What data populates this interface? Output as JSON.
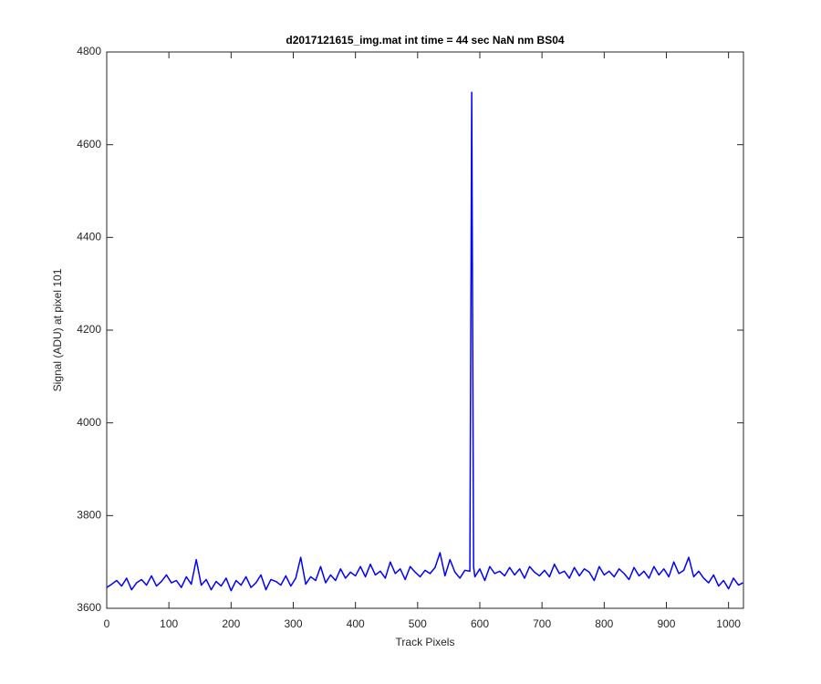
{
  "chart_data": {
    "type": "line",
    "title": "d2017121615_img.mat int time = 44 sec  NaN nm BS04",
    "x_label": "Track Pixels",
    "y_label": "Signal (ADU) at pixel 101",
    "x": [
      0,
      8,
      16,
      24,
      32,
      40,
      48,
      56,
      64,
      72,
      80,
      88,
      96,
      104,
      112,
      120,
      128,
      136,
      144,
      152,
      160,
      168,
      176,
      184,
      192,
      200,
      208,
      216,
      224,
      232,
      240,
      248,
      256,
      264,
      272,
      280,
      288,
      296,
      304,
      312,
      320,
      328,
      336,
      344,
      352,
      360,
      368,
      376,
      384,
      392,
      400,
      408,
      416,
      424,
      432,
      440,
      448,
      456,
      464,
      472,
      480,
      488,
      496,
      504,
      512,
      520,
      528,
      536,
      544,
      552,
      560,
      568,
      576,
      584,
      587,
      590,
      592,
      600,
      608,
      616,
      624,
      632,
      640,
      648,
      656,
      664,
      672,
      680,
      688,
      696,
      704,
      712,
      720,
      728,
      736,
      744,
      752,
      760,
      768,
      776,
      784,
      792,
      800,
      808,
      816,
      824,
      832,
      840,
      848,
      856,
      864,
      872,
      880,
      888,
      896,
      904,
      912,
      920,
      928,
      936,
      944,
      952,
      960,
      968,
      976,
      984,
      992,
      1000,
      1008,
      1016,
      1023
    ],
    "series": [
      {
        "name": "Signal",
        "color": "#0000ff",
        "values": [
          3645,
          3652,
          3660,
          3648,
          3665,
          3640,
          3655,
          3662,
          3650,
          3670,
          3648,
          3658,
          3672,
          3655,
          3660,
          3645,
          3668,
          3652,
          3705,
          3650,
          3662,
          3640,
          3658,
          3648,
          3665,
          3638,
          3660,
          3650,
          3668,
          3645,
          3655,
          3672,
          3640,
          3662,
          3658,
          3650,
          3670,
          3648,
          3665,
          3710,
          3652,
          3668,
          3660,
          3690,
          3655,
          3672,
          3660,
          3685,
          3665,
          3678,
          3670,
          3690,
          3668,
          3695,
          3672,
          3680,
          3665,
          3700,
          3675,
          3685,
          3662,
          3690,
          3678,
          3668,
          3682,
          3675,
          3688,
          3720,
          3670,
          3705,
          3678,
          3665,
          3682,
          3680,
          4713,
          3690,
          3668,
          3685,
          3660,
          3690,
          3675,
          3680,
          3670,
          3688,
          3672,
          3685,
          3665,
          3690,
          3678,
          3670,
          3682,
          3668,
          3695,
          3675,
          3680,
          3665,
          3688,
          3670,
          3685,
          3678,
          3660,
          3690,
          3672,
          3680,
          3668,
          3685,
          3675,
          3662,
          3688,
          3670,
          3680,
          3665,
          3690,
          3672,
          3685,
          3668,
          3700,
          3675,
          3682,
          3710,
          3668,
          3680,
          3665,
          3655,
          3672,
          3648,
          3660,
          3642,
          3665,
          3650,
          3655
        ]
      }
    ],
    "xlim": [
      0,
      1024
    ],
    "ylim": [
      3600,
      4800
    ],
    "xticks": [
      0,
      100,
      200,
      300,
      400,
      500,
      600,
      700,
      800,
      900,
      1000
    ],
    "yticks": [
      3600,
      3800,
      4000,
      4200,
      4400,
      4600,
      4800
    ],
    "grid": false
  }
}
